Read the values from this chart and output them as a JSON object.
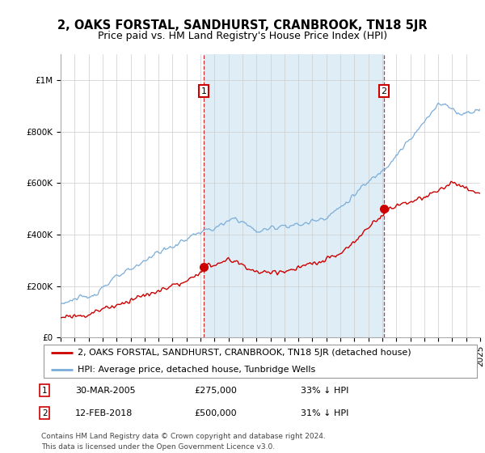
{
  "title": "2, OAKS FORSTAL, SANDHURST, CRANBROOK, TN18 5JR",
  "subtitle": "Price paid vs. HM Land Registry's House Price Index (HPI)",
  "legend_line1": "2, OAKS FORSTAL, SANDHURST, CRANBROOK, TN18 5JR (detached house)",
  "legend_line2": "HPI: Average price, detached house, Tunbridge Wells",
  "annotation1_date": "30-MAR-2005",
  "annotation1_price": "£275,000",
  "annotation1_hpi": "33% ↓ HPI",
  "annotation2_date": "12-FEB-2018",
  "annotation2_price": "£500,000",
  "annotation2_hpi": "31% ↓ HPI",
  "footnote": "Contains HM Land Registry data © Crown copyright and database right 2024.\nThis data is licensed under the Open Government Licence v3.0.",
  "hpi_color": "#7aadda",
  "hpi_fill_color": "#daeaf5",
  "price_color": "#cc0000",
  "box_color": "#cc0000",
  "ylim": [
    0,
    1100000
  ],
  "yticks": [
    0,
    200000,
    400000,
    600000,
    800000,
    1000000
  ],
  "ytick_labels": [
    "£0",
    "£200K",
    "£400K",
    "£600K",
    "£800K",
    "£1M"
  ],
  "year_start": 1995,
  "year_end": 2025,
  "sale1_year": 2005.24,
  "sale1_price": 275000,
  "sale2_year": 2018.12,
  "sale2_price": 500000,
  "title_fontsize": 10.5,
  "subtitle_fontsize": 9,
  "axis_fontsize": 7.5,
  "legend_fontsize": 8,
  "footnote_fontsize": 6.5
}
